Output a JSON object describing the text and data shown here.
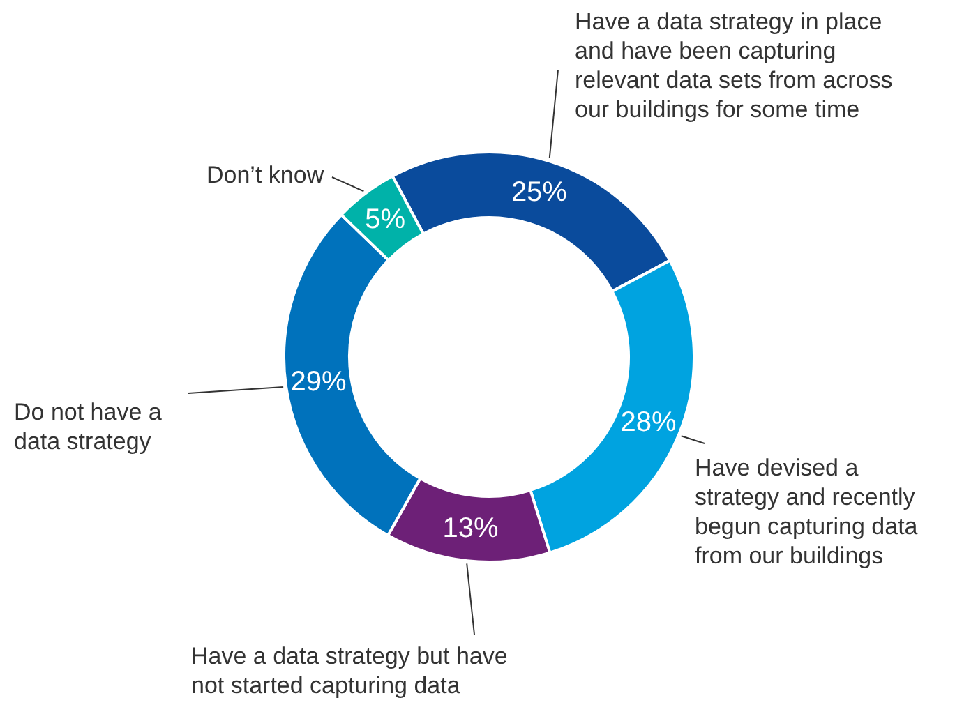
{
  "chart_data": {
    "type": "donut",
    "categories": [
      "Have a data strategy in place and have been capturing relevant data sets from across our buildings for some time",
      "Have devised a strategy and recently begun capturing data from our buildings",
      "Have a data strategy but have not started capturing data",
      "Do not have a data strategy",
      "Don’t know"
    ],
    "values": [
      25,
      28,
      13,
      29,
      5
    ],
    "value_labels": [
      "25%",
      "28%",
      "13%",
      "29%",
      "5%"
    ],
    "colors": [
      "#0a4b9c",
      "#00a3e0",
      "#6d2077",
      "#0072bc",
      "#00b2a9"
    ]
  }
}
